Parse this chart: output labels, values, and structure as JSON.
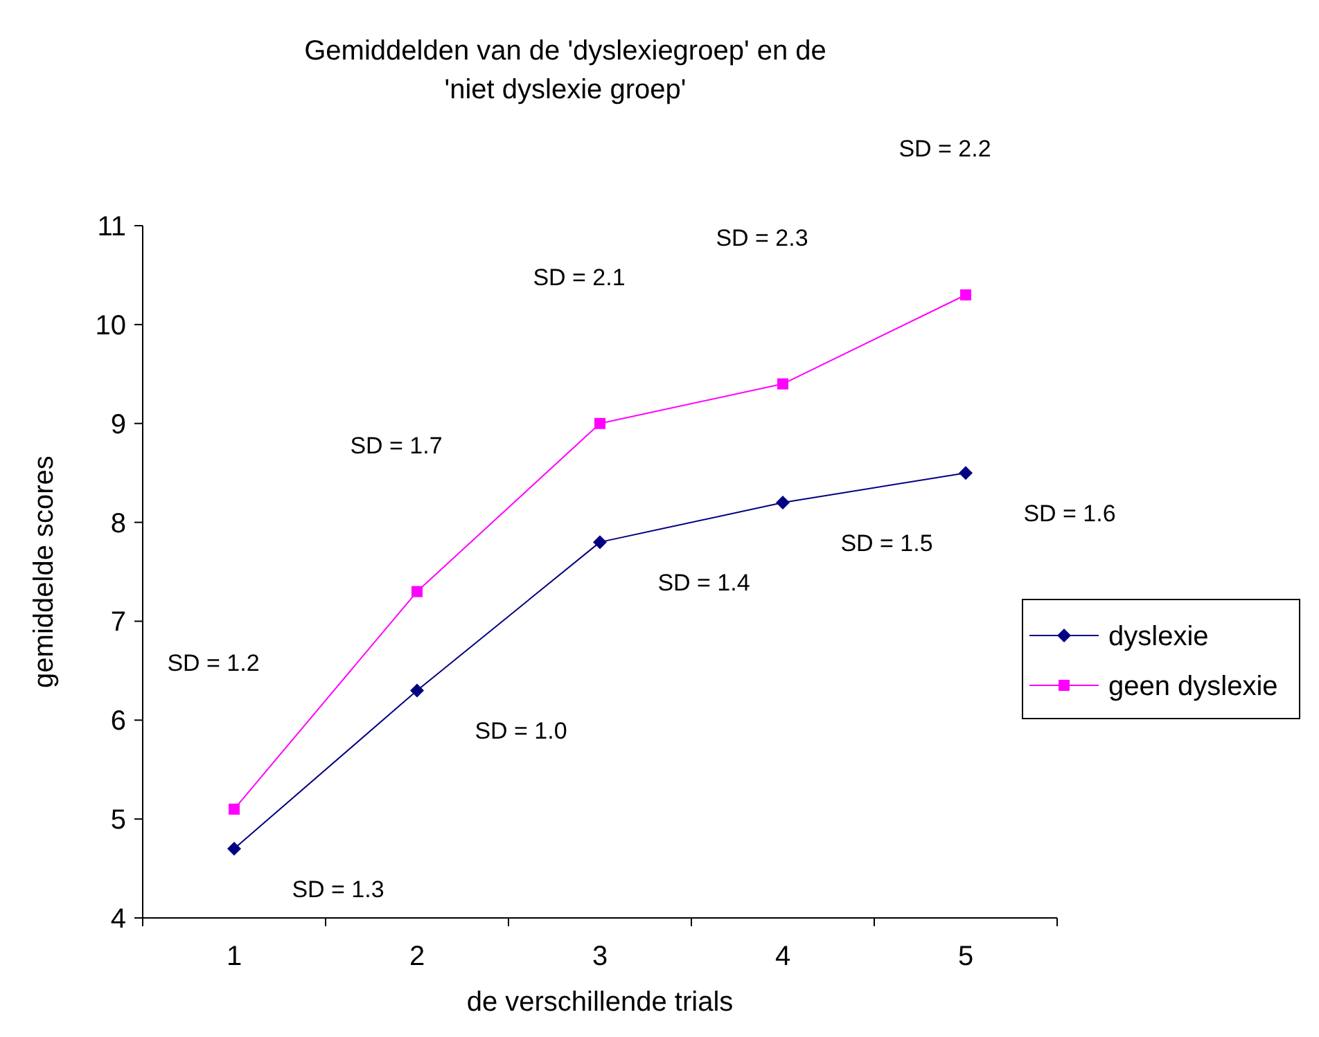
{
  "chart_data": {
    "type": "line",
    "title": "Gemiddelden van de 'dyslexiegroep' en de 'niet dyslexie groep'",
    "xlabel": "de verschillende trials",
    "ylabel": "gemiddelde scores",
    "categories": [
      "1",
      "2",
      "3",
      "4",
      "5"
    ],
    "series": [
      {
        "name": "dyslexie",
        "color": "#000080",
        "values": [
          4.7,
          6.3,
          7.8,
          8.2,
          8.5
        ],
        "marker": "diamond"
      },
      {
        "name": "geen dyslexie",
        "color": "#ff00ff",
        "values": [
          5.1,
          7.3,
          9.0,
          9.4,
          10.3
        ],
        "marker": "square"
      }
    ],
    "ylim": [
      4,
      11
    ],
    "yticks": [
      4,
      5,
      6,
      7,
      8,
      9,
      10,
      11
    ],
    "legend": "right",
    "line_style": "solid",
    "annotations": [
      "SD = 1.3",
      "SD = 1.0",
      "SD = 1.4",
      "SD = 1.5",
      "SD = 1.6",
      "SD = 1.2",
      "SD = 1.7",
      "SD = 2.1",
      "SD = 2.3",
      "SD = 2.2"
    ]
  }
}
